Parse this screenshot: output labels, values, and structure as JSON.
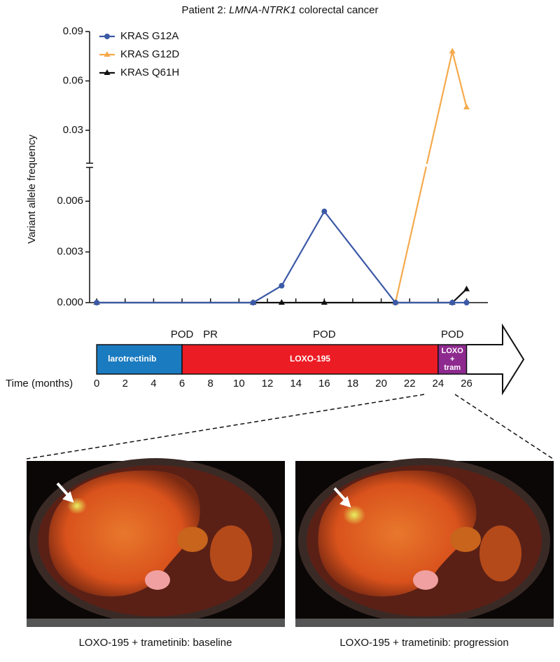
{
  "chart_data": {
    "type": "line",
    "title": [
      "Patient 2: ",
      "LMNA-NTRK1",
      " colorectal cancer"
    ],
    "y_label": "Variant allele frequency",
    "x_label": "Time (months)",
    "x": [
      0,
      11,
      13,
      16,
      21,
      25,
      26
    ],
    "xlim": [
      -0.5,
      27.5
    ],
    "xticks": [
      0,
      2,
      4,
      6,
      8,
      10,
      12,
      14,
      16,
      18,
      20,
      22,
      24,
      26
    ],
    "ylim": [
      0,
      0.008
    ],
    "yticks": [
      {
        "value": 0,
        "label": "0.000"
      },
      0.003,
      0.006
    ],
    "y_break": {
      "ylim": [
        0.01,
        0.09
      ],
      "yticks": [
        0.03,
        0.06,
        0.09
      ]
    },
    "legend": "top-left",
    "series": [
      {
        "name": "KRAS G12A",
        "color": "#3b59a6",
        "marker": "circle",
        "values": [
          0,
          0,
          0.001,
          0.0054,
          0,
          0,
          0
        ]
      },
      {
        "name": "KRAS G12D",
        "color": "#f6aa4c",
        "marker": "triangle",
        "values": [
          null,
          null,
          null,
          null,
          0,
          0.078,
          0.044
        ]
      },
      {
        "name": "KRAS Q61H",
        "color": "#111111",
        "marker": "triangle",
        "values": [
          0,
          0,
          0,
          0,
          0,
          0,
          0.0008
        ]
      }
    ],
    "treatments": [
      {
        "label": [
          "larotrectinib"
        ],
        "start": 0,
        "end": 6,
        "color": "#1a7bc0"
      },
      {
        "label": [
          "LOXO-195"
        ],
        "start": 6,
        "end": 24,
        "color": "#ec1c24"
      },
      {
        "label": [
          "LOXO",
          "+",
          "tram"
        ],
        "start": 24,
        "end": 26,
        "color": "#8e2a8f"
      }
    ],
    "events": [
      {
        "label": "POD",
        "x": 6
      },
      {
        "label": "PR",
        "x": 8
      },
      {
        "label": "POD",
        "x": 16
      },
      {
        "label": "POD",
        "x": 25
      }
    ]
  },
  "images": {
    "captions": [
      "LOXO-195 + trametinib: baseline",
      "LOXO-195 + trametinib: progression"
    ]
  }
}
